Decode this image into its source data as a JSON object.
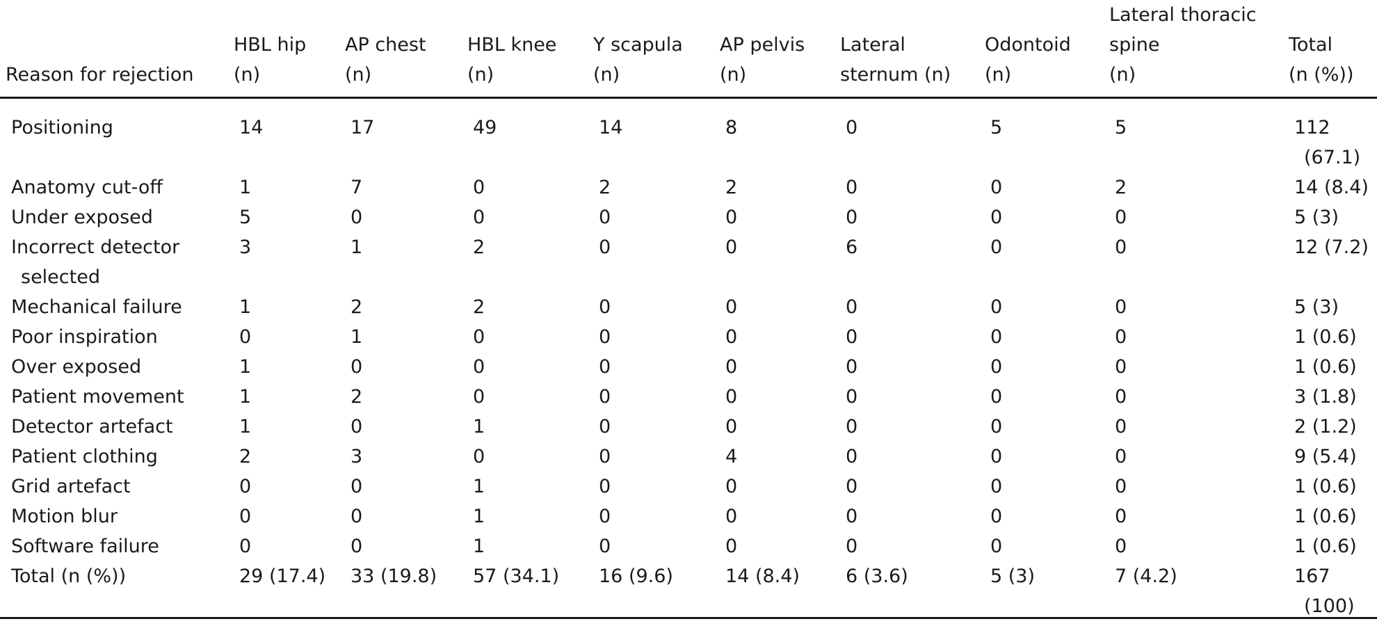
{
  "table": {
    "headers": [
      "Reason for rejection",
      "HBL hip (n)",
      "AP chest (n)",
      "HBL knee (n)",
      "Y scapula (n)",
      "AP pelvis (n)",
      "Lateral sternum (n)",
      "Odontoid (n)",
      "Lateral thoracic spine (n)",
      "Total (n (%))"
    ],
    "header_lines": [
      [
        "Reason for rejection"
      ],
      [
        "HBL hip",
        "(n)"
      ],
      [
        "AP chest",
        "(n)"
      ],
      [
        "HBL knee",
        "(n)"
      ],
      [
        "Y scapula",
        "(n)"
      ],
      [
        "AP pelvis",
        "(n)"
      ],
      [
        "Lateral",
        "sternum (n)"
      ],
      [
        "Odontoid",
        "(n)"
      ],
      [
        "Lateral thoracic",
        "spine",
        "(n)"
      ],
      [
        "Total",
        "(n (%))"
      ]
    ],
    "rows": [
      [
        "Positioning",
        "14",
        "17",
        "49",
        "14",
        "8",
        "0",
        "5",
        "5",
        "112 (67.1)"
      ],
      [
        "Anatomy cut-off",
        "1",
        "7",
        "0",
        "2",
        "2",
        "0",
        "0",
        "2",
        "14 (8.4)"
      ],
      [
        "Under exposed",
        "5",
        "0",
        "0",
        "0",
        "0",
        "0",
        "0",
        "0",
        "5 (3)"
      ],
      [
        "Incorrect detector selected",
        "3",
        "1",
        "2",
        "0",
        "0",
        "6",
        "0",
        "0",
        "12 (7.2)"
      ],
      [
        "Mechanical failure",
        "1",
        "2",
        "2",
        "0",
        "0",
        "0",
        "0",
        "0",
        "5 (3)"
      ],
      [
        "Poor inspiration",
        "0",
        "1",
        "0",
        "0",
        "0",
        "0",
        "0",
        "0",
        "1 (0.6)"
      ],
      [
        "Over exposed",
        "1",
        "0",
        "0",
        "0",
        "0",
        "0",
        "0",
        "0",
        "1 (0.6)"
      ],
      [
        "Patient movement",
        "1",
        "2",
        "0",
        "0",
        "0",
        "0",
        "0",
        "0",
        "3 (1.8)"
      ],
      [
        "Detector artefact",
        "1",
        "0",
        "1",
        "0",
        "0",
        "0",
        "0",
        "0",
        "2 (1.2)"
      ],
      [
        "Patient clothing",
        "2",
        "3",
        "0",
        "0",
        "4",
        "0",
        "0",
        "0",
        "9 (5.4)"
      ],
      [
        "Grid artefact",
        "0",
        "0",
        "1",
        "0",
        "0",
        "0",
        "0",
        "0",
        "1 (0.6)"
      ],
      [
        "Motion blur",
        "0",
        "0",
        "1",
        "0",
        "0",
        "0",
        "0",
        "0",
        "1 (0.6)"
      ],
      [
        "Software failure",
        "0",
        "0",
        "1",
        "0",
        "0",
        "0",
        "0",
        "0",
        "1 (0.6)"
      ],
      [
        "Total (n (%))",
        "29 (17.4)",
        "33 (19.8)",
        "57 (34.1)",
        "16 (9.6)",
        "14 (8.4)",
        "6 (3.6)",
        "5 (3)",
        "7 (4.2)",
        "167 (100)"
      ]
    ]
  }
}
